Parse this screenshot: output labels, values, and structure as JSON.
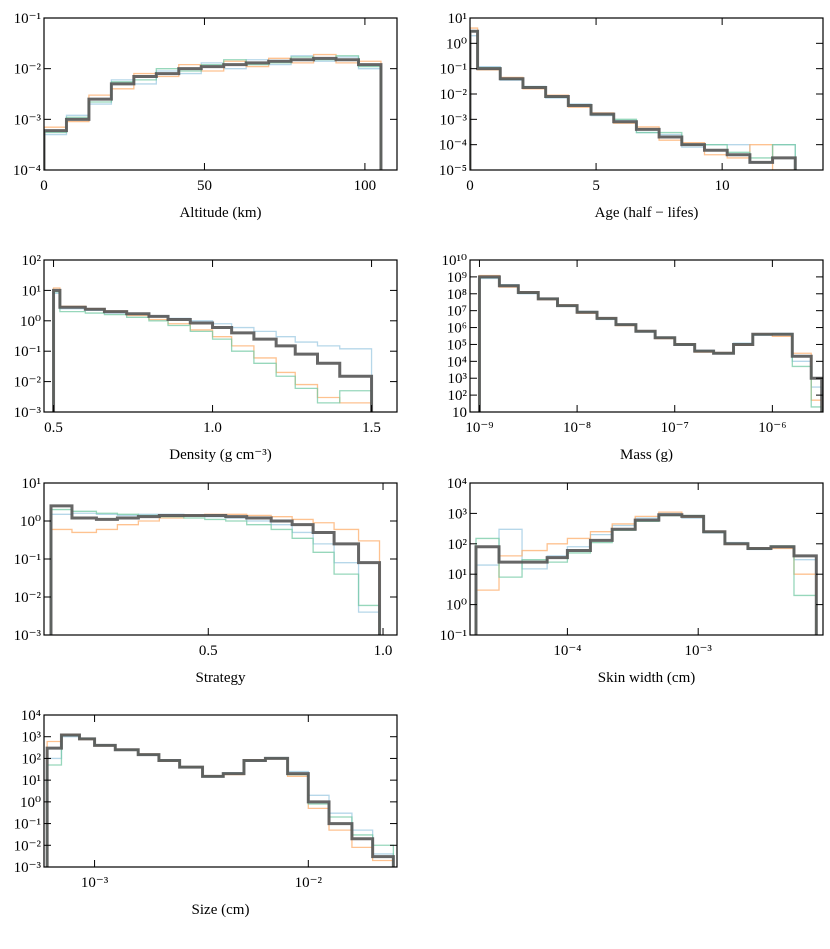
{
  "chart_data": [
    {
      "type": "histogram",
      "xlabel": "Altitude (km)",
      "xscale": "linear",
      "yscale": "log",
      "xlim": [
        0,
        110
      ],
      "xticks": [
        0,
        50,
        100
      ],
      "ylim": [
        0.0001,
        0.1
      ],
      "yticks": [
        {
          "value": 0.0001,
          "label": "10⁻⁴"
        },
        {
          "value": 0.001,
          "label": "10⁻³"
        },
        {
          "value": 0.01,
          "label": "10⁻²"
        },
        {
          "value": 0.1,
          "label": "10⁻¹"
        }
      ],
      "bins": [
        0,
        7,
        14,
        21,
        28,
        35,
        42,
        49,
        56,
        63,
        70,
        77,
        84,
        91,
        98,
        105
      ],
      "series": [
        {
          "color": "#9ecae1",
          "values": [
            0.0005,
            0.0012,
            0.002,
            0.006,
            0.005,
            0.009,
            0.008,
            0.013,
            0.01,
            0.015,
            0.012,
            0.018,
            0.014,
            0.017,
            0.01
          ]
        },
        {
          "color": "#fdae6b",
          "values": [
            0.0007,
            0.0009,
            0.003,
            0.004,
            0.008,
            0.007,
            0.012,
            0.009,
            0.014,
            0.011,
            0.016,
            0.013,
            0.019,
            0.013,
            0.014
          ]
        },
        {
          "color": "#74c9a4",
          "values": [
            0.00055,
            0.0011,
            0.0022,
            0.0055,
            0.006,
            0.01,
            0.009,
            0.012,
            0.015,
            0.012,
            0.013,
            0.017,
            0.015,
            0.018,
            0.011
          ]
        },
        {
          "color": "#555555",
          "values": [
            0.0006,
            0.001,
            0.0025,
            0.005,
            0.007,
            0.008,
            0.01,
            0.011,
            0.012,
            0.013,
            0.014,
            0.015,
            0.016,
            0.015,
            0.012
          ]
        }
      ]
    },
    {
      "type": "histogram",
      "xlabel": "Age (half − lifes)",
      "xscale": "linear",
      "yscale": "log",
      "xlim": [
        0,
        14
      ],
      "xticks": [
        0,
        5,
        10
      ],
      "ylim": [
        1e-05,
        10
      ],
      "yticks": [
        {
          "value": 1e-05,
          "label": "10⁻⁵"
        },
        {
          "value": 0.0001,
          "label": "10⁻⁴"
        },
        {
          "value": 0.001,
          "label": "10⁻³"
        },
        {
          "value": 0.01,
          "label": "10⁻²"
        },
        {
          "value": 0.1,
          "label": "10⁻¹"
        },
        {
          "value": 1,
          "label": "10⁰"
        },
        {
          "value": 10,
          "label": "10¹"
        }
      ],
      "bins": [
        0,
        0.3,
        1.2,
        2.1,
        3,
        3.9,
        4.8,
        5.7,
        6.6,
        7.5,
        8.4,
        9.3,
        10.2,
        11.1,
        12,
        12.9
      ],
      "series": [
        {
          "color": "#9ecae1",
          "values": [
            2,
            0.12,
            0.035,
            0.02,
            0.007,
            0.004,
            0.0014,
            0.0009,
            0.0003,
            0.00025,
            8e-05,
            0.0001,
            0.0001,
            2e-05,
            0.0001
          ]
        },
        {
          "color": "#fdae6b",
          "values": [
            4,
            0.09,
            0.045,
            0.016,
            0.009,
            0.003,
            0.0018,
            0.0007,
            0.0005,
            0.00015,
            0.00012,
            4e-05,
            3e-05,
            0.0001,
            1e-05
          ]
        },
        {
          "color": "#74c9a4",
          "values": [
            3,
            0.11,
            0.038,
            0.019,
            0.0075,
            0.0037,
            0.0015,
            0.001,
            0.0003,
            0.0003,
            0.0001,
            0.0001,
            5e-05,
            3e-05,
            0.0001
          ]
        },
        {
          "color": "#555555",
          "values": [
            3,
            0.1,
            0.04,
            0.018,
            0.008,
            0.0035,
            0.0016,
            0.0008,
            0.0004,
            0.0002,
            0.0001,
            6e-05,
            4e-05,
            2e-05,
            3e-05
          ]
        }
      ]
    },
    {
      "type": "histogram",
      "xlabel": "Density (g cm⁻³)",
      "xscale": "linear",
      "yscale": "log",
      "xlim": [
        0.47,
        1.58
      ],
      "xticks": [
        0.5,
        {
          "value": 1,
          "label": "1.0"
        },
        1.5
      ],
      "ylim": [
        0.001,
        100
      ],
      "yticks": [
        {
          "value": 0.001,
          "label": "10⁻³"
        },
        {
          "value": 0.01,
          "label": "10⁻²"
        },
        {
          "value": 0.1,
          "label": "10⁻¹"
        },
        {
          "value": 1,
          "label": "10⁰"
        },
        {
          "value": 10,
          "label": "10¹"
        },
        {
          "value": 100,
          "label": "10²"
        }
      ],
      "bins": [
        0.5,
        0.52,
        0.6,
        0.66,
        0.73,
        0.8,
        0.86,
        0.93,
        1.0,
        1.06,
        1.13,
        1.2,
        1.26,
        1.33,
        1.4,
        1.5
      ],
      "series": [
        {
          "color": "#9ecae1",
          "values": [
            8,
            2.5,
            2.2,
            1.8,
            1.6,
            1.4,
            1.2,
            1.0,
            0.8,
            0.6,
            0.45,
            0.3,
            0.2,
            0.15,
            0.12
          ]
        },
        {
          "color": "#fdae6b",
          "values": [
            12,
            3,
            2.5,
            2.1,
            1.5,
            1.1,
            0.8,
            0.5,
            0.3,
            0.15,
            0.06,
            0.02,
            0.008,
            0.003,
            0.002
          ]
        },
        {
          "color": "#74c9a4",
          "values": [
            9,
            2,
            1.8,
            1.6,
            1.3,
            1.0,
            0.7,
            0.45,
            0.25,
            0.1,
            0.04,
            0.015,
            0.006,
            0.002,
            0.005
          ]
        },
        {
          "color": "#555555",
          "values": [
            10,
            2.8,
            2.4,
            2.0,
            1.7,
            1.4,
            1.1,
            0.85,
            0.6,
            0.4,
            0.25,
            0.15,
            0.08,
            0.04,
            0.015
          ]
        }
      ]
    },
    {
      "type": "histogram",
      "xlabel": "Mass (g)",
      "xscale": "log",
      "yscale": "log",
      "xlim": [
        8e-10,
        3.3e-06
      ],
      "xticks": [
        {
          "value": 1e-09,
          "label": "10⁻⁹"
        },
        {
          "value": 1e-08,
          "label": "10⁻⁸"
        },
        {
          "value": 1e-07,
          "label": "10⁻⁷"
        },
        {
          "value": 1e-06,
          "label": "10⁻⁶"
        }
      ],
      "ylim": [
        10,
        10000000000
      ],
      "yticks": [
        10,
        {
          "value": 100,
          "label": "10²"
        },
        {
          "value": 1000,
          "label": "10³"
        },
        {
          "value": 10000,
          "label": "10⁴"
        },
        {
          "value": 100000,
          "label": "10⁵"
        },
        {
          "value": 1000000,
          "label": "10⁶"
        },
        {
          "value": 10000000,
          "label": "10⁷"
        },
        {
          "value": 100000000,
          "label": "10⁸"
        },
        {
          "value": 1000000000,
          "label": "10⁹"
        },
        {
          "value": 10000000000,
          "label": "10¹⁰"
        }
      ],
      "bins": [
        1e-09,
        1.6e-09,
        2.5e-09,
        4e-09,
        6.3e-09,
        1e-08,
        1.6e-08,
        2.5e-08,
        4e-08,
        6.3e-08,
        1e-07,
        1.6e-07,
        2.5e-07,
        4e-07,
        6.3e-07,
        1e-06,
        1.6e-06,
        2.5e-06,
        3.2e-06
      ],
      "series": [
        {
          "color": "#9ecae1",
          "values": [
            800000000,
            350000000,
            100000000,
            55000000,
            18000000,
            9000000,
            3000000,
            1600000,
            550000,
            270000,
            90000,
            45000,
            28000,
            120000,
            350000,
            450000,
            10000,
            300
          ]
        },
        {
          "color": "#fdae6b",
          "values": [
            1200000000,
            250000000,
            130000000,
            45000000,
            22000000,
            7000000,
            3800000,
            1300000,
            650000,
            220000,
            110000,
            35000,
            33000,
            90000,
            420000,
            300000,
            30000,
            50
          ]
        },
        {
          "color": "#74c9a4",
          "values": [
            900000000,
            320000000,
            110000000,
            50000000,
            19000000,
            8500000,
            3200000,
            1500000,
            580000,
            260000,
            100000,
            42000,
            30000,
            110000,
            380000,
            420000,
            5000,
            20
          ]
        },
        {
          "color": "#555555",
          "values": [
            1000000000,
            300000000,
            120000000,
            50000000,
            20000000,
            8000000,
            3500000,
            1500000,
            600000,
            250000,
            100000,
            40000,
            30000,
            100000,
            400000,
            400000,
            20000,
            1000
          ]
        }
      ]
    },
    {
      "type": "histogram",
      "xlabel": "Strategy",
      "xscale": "linear",
      "yscale": "log",
      "xlim": [
        0.03,
        1.04
      ],
      "xticks": [
        0.5,
        {
          "value": 1,
          "label": "1.0"
        }
      ],
      "ylim": [
        0.001,
        10
      ],
      "yticks": [
        {
          "value": 0.001,
          "label": "10⁻³"
        },
        {
          "value": 0.01,
          "label": "10⁻²"
        },
        {
          "value": 0.1,
          "label": "10⁻¹"
        },
        {
          "value": 1,
          "label": "10⁰"
        },
        {
          "value": 10,
          "label": "10¹"
        }
      ],
      "bins": [
        0.05,
        0.11,
        0.18,
        0.24,
        0.3,
        0.36,
        0.43,
        0.49,
        0.55,
        0.61,
        0.68,
        0.74,
        0.8,
        0.86,
        0.93,
        0.99
      ],
      "series": [
        {
          "color": "#9ecae1",
          "values": [
            1.5,
            1.6,
            1.5,
            1.4,
            1.5,
            1.5,
            1.4,
            1.3,
            1.2,
            1.0,
            0.8,
            0.5,
            0.25,
            0.08,
            0.004
          ]
        },
        {
          "color": "#fdae6b",
          "values": [
            0.6,
            0.5,
            0.6,
            0.8,
            1.0,
            1.2,
            1.4,
            1.5,
            1.5,
            1.4,
            1.3,
            1.1,
            0.9,
            0.6,
            0.3
          ]
        },
        {
          "color": "#74c9a4",
          "values": [
            2,
            1.8,
            1.6,
            1.5,
            1.4,
            1.3,
            1.2,
            1.1,
            1.0,
            0.8,
            0.6,
            0.35,
            0.15,
            0.04,
            0.006
          ]
        },
        {
          "color": "#555555",
          "values": [
            2.5,
            1.2,
            1.1,
            1.2,
            1.3,
            1.4,
            1.4,
            1.4,
            1.3,
            1.2,
            1.0,
            0.8,
            0.5,
            0.25,
            0.08
          ]
        }
      ]
    },
    {
      "type": "histogram",
      "xlabel": "Skin width (cm)",
      "xscale": "log",
      "yscale": "log",
      "xlim": [
        1.8e-05,
        0.009
      ],
      "xticks": [
        {
          "value": 0.0001,
          "label": "10⁻⁴"
        },
        {
          "value": 0.001,
          "label": "10⁻³"
        }
      ],
      "ylim": [
        0.1,
        10000
      ],
      "yticks": [
        {
          "value": 0.1,
          "label": "10⁻¹"
        },
        {
          "value": 1,
          "label": "10⁰"
        },
        {
          "value": 10,
          "label": "10¹"
        },
        {
          "value": 100,
          "label": "10²"
        },
        {
          "value": 1000,
          "label": "10³"
        },
        {
          "value": 10000,
          "label": "10⁴"
        }
      ],
      "bins": [
        2e-05,
        3e-05,
        4.5e-05,
        7e-05,
        0.0001,
        0.00015,
        0.00022,
        0.00033,
        0.0005,
        0.00075,
        0.0011,
        0.0016,
        0.0024,
        0.0036,
        0.0054,
        0.008
      ],
      "series": [
        {
          "color": "#9ecae1",
          "values": [
            20,
            300,
            15,
            40,
            80,
            200,
            400,
            700,
            1000,
            700,
            230,
            110,
            65,
            75,
            30
          ]
        },
        {
          "color": "#fdae6b",
          "values": [
            3,
            40,
            60,
            100,
            150,
            250,
            450,
            800,
            1100,
            750,
            260,
            95,
            72,
            70,
            10
          ]
        },
        {
          "color": "#74c9a4",
          "values": [
            150,
            8,
            30,
            25,
            50,
            110,
            280,
            550,
            850,
            850,
            240,
            105,
            68,
            85,
            2
          ]
        },
        {
          "color": "#555555",
          "values": [
            80,
            25,
            25,
            35,
            60,
            130,
            300,
            600,
            900,
            800,
            250,
            100,
            70,
            80,
            40
          ]
        }
      ]
    },
    {
      "type": "histogram",
      "xlabel": "Size (cm)",
      "xscale": "log",
      "yscale": "log",
      "xlim": [
        0.00058,
        0.026
      ],
      "xticks": [
        {
          "value": 0.001,
          "label": "10⁻³"
        },
        {
          "value": 0.01,
          "label": "10⁻²"
        }
      ],
      "ylim": [
        0.001,
        10000
      ],
      "yticks": [
        {
          "value": 0.001,
          "label": "10⁻³"
        },
        {
          "value": 0.01,
          "label": "10⁻²"
        },
        {
          "value": 0.1,
          "label": "10⁻¹"
        },
        {
          "value": 1,
          "label": "10⁰"
        },
        {
          "value": 10,
          "label": "10¹"
        },
        {
          "value": 100,
          "label": "10²"
        },
        {
          "value": 1000,
          "label": "10³"
        },
        {
          "value": 10000,
          "label": "10⁴"
        }
      ],
      "bins": [
        0.0006,
        0.0007,
        0.00085,
        0.001,
        0.00125,
        0.0016,
        0.002,
        0.0025,
        0.0032,
        0.004,
        0.005,
        0.0063,
        0.008,
        0.01,
        0.0125,
        0.016,
        0.02,
        0.025
      ],
      "series": [
        {
          "color": "#9ecae1",
          "values": [
            100,
            1000,
            850,
            420,
            240,
            140,
            85,
            38,
            14,
            22,
            75,
            110,
            25,
            2,
            0.3,
            0.05,
            0.004
          ]
        },
        {
          "color": "#fdae6b",
          "values": [
            600,
            1300,
            750,
            380,
            260,
            160,
            75,
            42,
            16,
            18,
            85,
            95,
            15,
            0.5,
            0.05,
            0.008,
            0.002
          ]
        },
        {
          "color": "#74c9a4",
          "values": [
            50,
            1100,
            820,
            410,
            250,
            150,
            80,
            40,
            15,
            21,
            80,
            100,
            18,
            0.8,
            0.2,
            0.03,
            0.01
          ]
        },
        {
          "color": "#555555",
          "values": [
            300,
            1200,
            800,
            400,
            250,
            150,
            80,
            40,
            15,
            20,
            80,
            100,
            20,
            1,
            0.1,
            0.02,
            0.003
          ]
        }
      ]
    }
  ]
}
